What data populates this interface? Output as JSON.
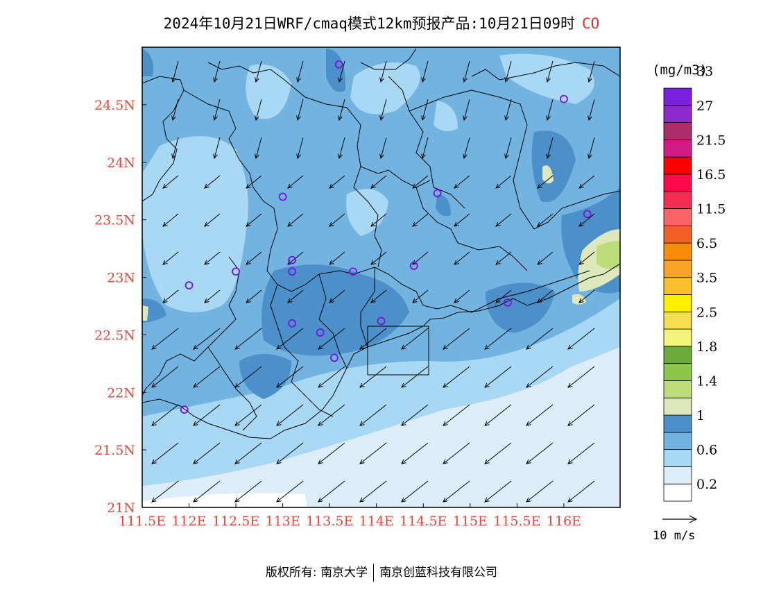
{
  "title": {
    "main": "2024年10月21日WRF/cmaq模式12km预报产品:10月21日09时",
    "species": "CO"
  },
  "map": {
    "lon_labels": [
      "111.5E",
      "112E",
      "112.5E",
      "113E",
      "113.5E",
      "114E",
      "114.5E",
      "115E",
      "115.5E",
      "116E"
    ],
    "lat_labels": [
      "21N",
      "21.5N",
      "22N",
      "22.5N",
      "23N",
      "23.5N",
      "24N",
      "24.5N"
    ],
    "label_color": "#e8443a",
    "extent": {
      "lon": [
        111.5,
        116.6
      ],
      "lat": [
        21.0,
        25.0
      ]
    },
    "stations": [
      {
        "lon": 113.6,
        "lat": 24.85
      },
      {
        "lon": 116.0,
        "lat": 24.55
      },
      {
        "lon": 113.0,
        "lat": 23.7
      },
      {
        "lon": 114.65,
        "lat": 23.73
      },
      {
        "lon": 116.25,
        "lat": 23.55
      },
      {
        "lon": 112.5,
        "lat": 23.05
      },
      {
        "lon": 112.0,
        "lat": 22.93
      },
      {
        "lon": 113.1,
        "lat": 23.15
      },
      {
        "lon": 113.1,
        "lat": 23.05
      },
      {
        "lon": 113.75,
        "lat": 23.05
      },
      {
        "lon": 114.4,
        "lat": 23.1
      },
      {
        "lon": 115.4,
        "lat": 22.78
      },
      {
        "lon": 113.1,
        "lat": 22.6
      },
      {
        "lon": 113.4,
        "lat": 22.52
      },
      {
        "lon": 114.05,
        "lat": 22.62
      },
      {
        "lon": 113.55,
        "lat": 22.3
      },
      {
        "lon": 111.95,
        "lat": 21.85
      }
    ]
  },
  "legend": {
    "unit": "(mg/m3)",
    "labels": [
      "0.2",
      "0.6",
      "1",
      "1.4",
      "1.8",
      "2.5",
      "3.5",
      "6.5",
      "11.5",
      "16.5",
      "21.5",
      "27",
      "33"
    ],
    "colors": [
      "#ffffff",
      "#ddeefa",
      "#a9d8f5",
      "#73b3e0",
      "#4b90c8",
      "#dde9bd",
      "#bedd7a",
      "#8cc64b",
      "#6aaa39",
      "#f0f57a",
      "#f5dd52",
      "#fff000",
      "#f9c02c",
      "#f7a428",
      "#fa8a0a",
      "#f26025",
      "#fa6464",
      "#f42d53",
      "#fd0a4b",
      "#fa0000",
      "#d21a84",
      "#ad2d6b",
      "#8c28cc",
      "#7a20e0"
    ]
  },
  "wind_scale": {
    "label": "10 m/s"
  },
  "footer": {
    "left": "版权所有: 南京大学",
    "right": "南京创蓝科技有限公司"
  }
}
